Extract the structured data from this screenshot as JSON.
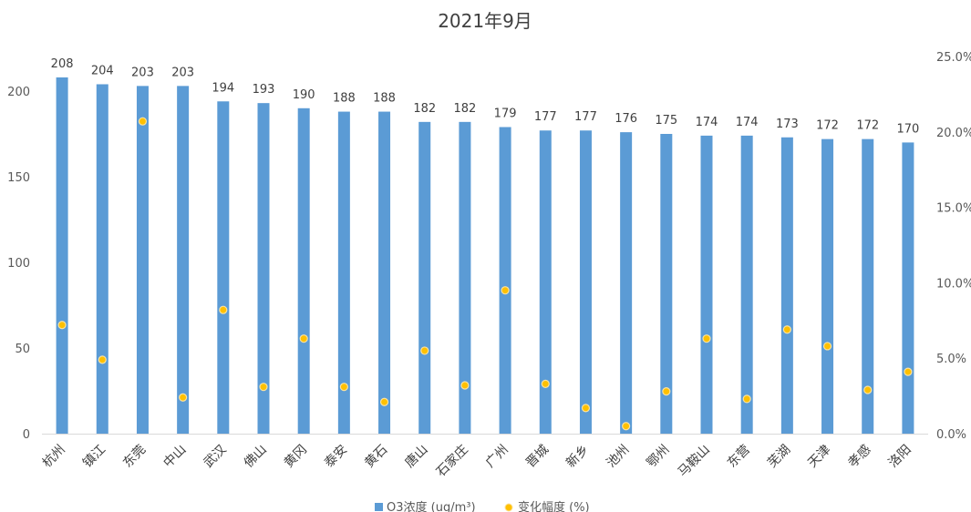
{
  "chart_data": {
    "type": "bar",
    "title": "2021年9月",
    "categories": [
      "杭州",
      "镇江",
      "东莞",
      "中山",
      "武汉",
      "佛山",
      "黄冈",
      "泰安",
      "黄石",
      "唐山",
      "石家庄",
      "广州",
      "晋城",
      "新乡",
      "池州",
      "鄂州",
      "马鞍山",
      "东营",
      "芜湖",
      "天津",
      "孝感",
      "洛阳"
    ],
    "series": [
      {
        "name": "O3浓度 (ug/m³)",
        "type": "bar",
        "axis": "left",
        "color": "#5B9BD5",
        "values": [
          208,
          204,
          203,
          203,
          194,
          193,
          190,
          188,
          188,
          182,
          182,
          179,
          177,
          177,
          176,
          175,
          174,
          174,
          173,
          172,
          172,
          170
        ]
      },
      {
        "name": "变化幅度 (%)",
        "type": "scatter",
        "axis": "right",
        "color": "#FFC000",
        "values": [
          7.2,
          4.9,
          20.7,
          2.4,
          8.2,
          3.1,
          6.3,
          3.1,
          2.1,
          5.5,
          3.2,
          9.5,
          3.3,
          1.7,
          0.5,
          2.8,
          6.3,
          2.3,
          6.9,
          5.8,
          2.9,
          4.1
        ]
      }
    ],
    "y_left": {
      "ylim": [
        0,
        220
      ],
      "ticks": [
        "0",
        "50",
        "100",
        "150",
        "200"
      ]
    },
    "y_right": {
      "ylim": [
        0,
        25
      ],
      "ticks": [
        "0.0%",
        "5.0%",
        "10.0%",
        "15.0%",
        "20.0%",
        "25.0%"
      ]
    },
    "data_labels": true,
    "grid": false,
    "legend": "bottom"
  }
}
